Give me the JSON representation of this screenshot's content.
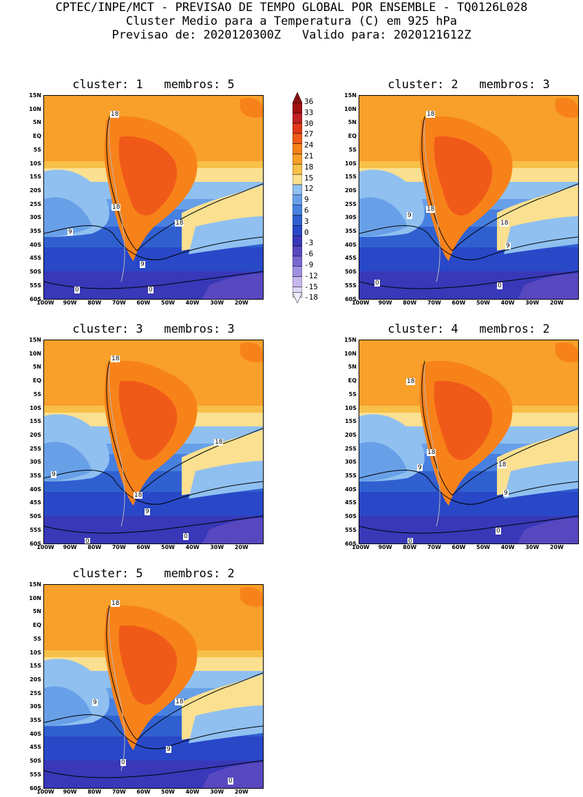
{
  "header": {
    "line1": "CPTEC/INPE/MCT - PREVISAO DE TEMPO GLOBAL POR ENSEMBLE - TQ0126L028",
    "line2": "Cluster Medio para a Temperatura (C) em 925 hPa",
    "line3": "Previsao de: 2020120300Z   Valido para: 2020121612Z"
  },
  "axes": {
    "lat_labels": [
      "15N",
      "10N",
      "5N",
      "EQ",
      "5S",
      "10S",
      "15S",
      "20S",
      "25S",
      "30S",
      "35S",
      "40S",
      "45S",
      "50S",
      "55S",
      "60S"
    ],
    "lon_labels": [
      "100W",
      "90W",
      "80W",
      "70W",
      "60W",
      "50W",
      "40W",
      "30W",
      "20W"
    ]
  },
  "colorbar": {
    "labels": [
      "36",
      "33",
      "30",
      "27",
      "24",
      "21",
      "18",
      "15",
      "12",
      "9",
      "6",
      "3",
      "0",
      "-3",
      "-6",
      "-9",
      "-12",
      "-15",
      "-18"
    ],
    "colors": [
      "#a01010",
      "#c02020",
      "#e03818",
      "#f05a18",
      "#f8821a",
      "#f8a02a",
      "#f8c048",
      "#fae090",
      "#90c0f0",
      "#68a0e8",
      "#4880e0",
      "#3060d0",
      "#2848c8",
      "#3838b8",
      "#5848c0",
      "#7868d0",
      "#a090e0",
      "#c8b8f0",
      "#e0d8f8"
    ]
  },
  "panels": [
    {
      "title": "cluster: 1   membros: 5",
      "labels": [
        "18",
        "18",
        "18",
        "9",
        "9",
        "0",
        "0"
      ]
    },
    {
      "title": "cluster: 2   membros: 3",
      "labels": [
        "18",
        "18",
        "18",
        "9",
        "9",
        "0",
        "0"
      ]
    },
    {
      "title": "cluster: 3   membros: 3",
      "labels": [
        "18",
        "18",
        "18",
        "9",
        "9",
        "0",
        "0"
      ]
    },
    {
      "title": "cluster: 4   membros: 2",
      "labels": [
        "18",
        "18",
        "18",
        "9",
        "9",
        "0",
        "0"
      ]
    },
    {
      "title": "cluster: 5   membros: 2",
      "labels": [
        "18",
        "18",
        "9",
        "9",
        "0",
        "0"
      ]
    }
  ]
}
